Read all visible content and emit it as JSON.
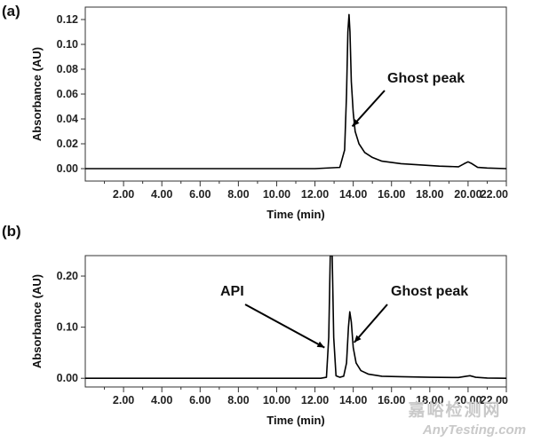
{
  "chart_data": [
    {
      "type": "line",
      "panel_label": "(a)",
      "xlabel": "Time (min)",
      "ylabel": "Absorbance (AU)",
      "xlim": [
        0,
        22
      ],
      "ylim": [
        -0.01,
        0.13
      ],
      "x_ticks": [
        "2.00",
        "4.00",
        "6.00",
        "8.00",
        "10.00",
        "12.00",
        "14.00",
        "16.00",
        "18.00",
        "20.00",
        "22.00"
      ],
      "y_ticks": [
        "0.00",
        "0.02",
        "0.04",
        "0.06",
        "0.08",
        "0.10",
        "0.12"
      ],
      "series": [
        {
          "x": [
            0,
            12.0,
            13.3,
            13.55,
            13.65,
            13.72,
            13.78,
            13.83,
            13.9,
            14.0,
            14.1,
            14.3,
            14.6,
            15.0,
            15.5,
            16.5,
            17.5,
            18.5,
            19.5,
            19.8,
            20.0,
            20.2,
            20.5,
            21.0,
            22.0
          ],
          "y": [
            0,
            0,
            0.001,
            0.015,
            0.06,
            0.11,
            0.124,
            0.11,
            0.07,
            0.045,
            0.03,
            0.02,
            0.013,
            0.009,
            0.006,
            0.004,
            0.003,
            0.002,
            0.0015,
            0.004,
            0.0055,
            0.004,
            0.001,
            0.0005,
            0
          ]
        }
      ],
      "annotations": [
        {
          "text": "Ghost peak",
          "target_x": 13.95,
          "target_y": 0.034
        }
      ]
    },
    {
      "type": "line",
      "panel_label": "(b)",
      "xlabel": "Time (min)",
      "ylabel": "Absorbance (AU)",
      "xlim": [
        0,
        22
      ],
      "ylim": [
        -0.017,
        0.24
      ],
      "x_ticks": [
        "2.00",
        "4.00",
        "6.00",
        "8.00",
        "10.00",
        "12.00",
        "14.00",
        "16.00",
        "18.00",
        "20.00",
        "22.00"
      ],
      "y_ticks": [
        "0.00",
        "0.10",
        "0.20"
      ],
      "series": [
        {
          "x": [
            0,
            12.3,
            12.6,
            12.72,
            12.8,
            12.9,
            12.98,
            13.1,
            13.3,
            13.5,
            13.65,
            13.75,
            13.82,
            13.9,
            14.0,
            14.15,
            14.4,
            14.8,
            15.5,
            16.5,
            18.0,
            19.5,
            19.9,
            20.1,
            20.4,
            21.0,
            22.0
          ],
          "y": [
            0,
            0,
            0.002,
            0.08,
            0.24,
            0.24,
            0.08,
            0.005,
            0.002,
            0.004,
            0.03,
            0.1,
            0.13,
            0.11,
            0.06,
            0.03,
            0.015,
            0.008,
            0.004,
            0.003,
            0.002,
            0.0015,
            0.004,
            0.005,
            0.002,
            0.0005,
            0
          ]
        }
      ],
      "annotations": [
        {
          "text": "API",
          "target_x": 12.5,
          "target_y": 0.06
        },
        {
          "text": "Ghost peak",
          "target_x": 14.05,
          "target_y": 0.07
        }
      ]
    }
  ],
  "watermark": {
    "chinese": "嘉峪检测网",
    "english": "AnyTesting.com"
  }
}
